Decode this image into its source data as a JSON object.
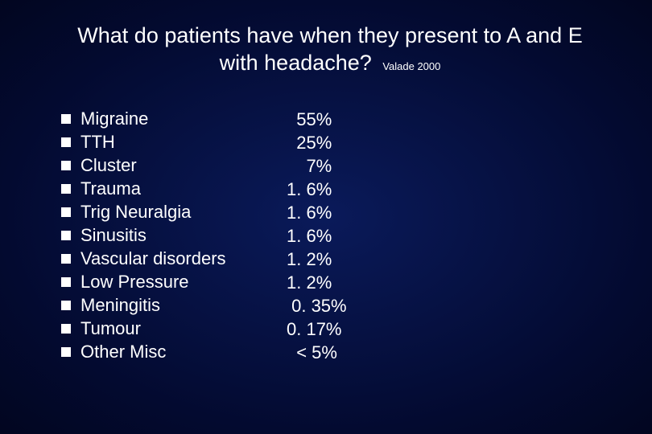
{
  "slide": {
    "title_line1": "What do patients have when they present to A and E",
    "title_line2": "with headache?",
    "citation": "Valade 2000",
    "background_gradient": [
      "#0a1a5a",
      "#030a30",
      "#020620"
    ],
    "text_color": "#ffffff",
    "bullet_color": "#ffffff",
    "title_fontsize": 27,
    "body_fontsize": 22,
    "citation_fontsize": 13,
    "items": [
      {
        "label": "Migraine",
        "value": "  55%"
      },
      {
        "label": "TTH",
        "value": "  25%"
      },
      {
        "label": "Cluster",
        "value": "    7%"
      },
      {
        "label": "Trauma",
        "value": "1. 6%"
      },
      {
        "label": "Trig Neuralgia",
        "value": "1. 6%"
      },
      {
        "label": "Sinusitis",
        "value": "1. 6%"
      },
      {
        "label": "Vascular disorders",
        "value": "1. 2%"
      },
      {
        "label": "Low Pressure",
        "value": "1. 2%"
      },
      {
        "label": "Meningitis",
        "value": " 0. 35%"
      },
      {
        "label": "Tumour",
        "value": "0. 17%"
      },
      {
        "label": "Other Misc",
        "value": "  < 5%"
      }
    ]
  }
}
